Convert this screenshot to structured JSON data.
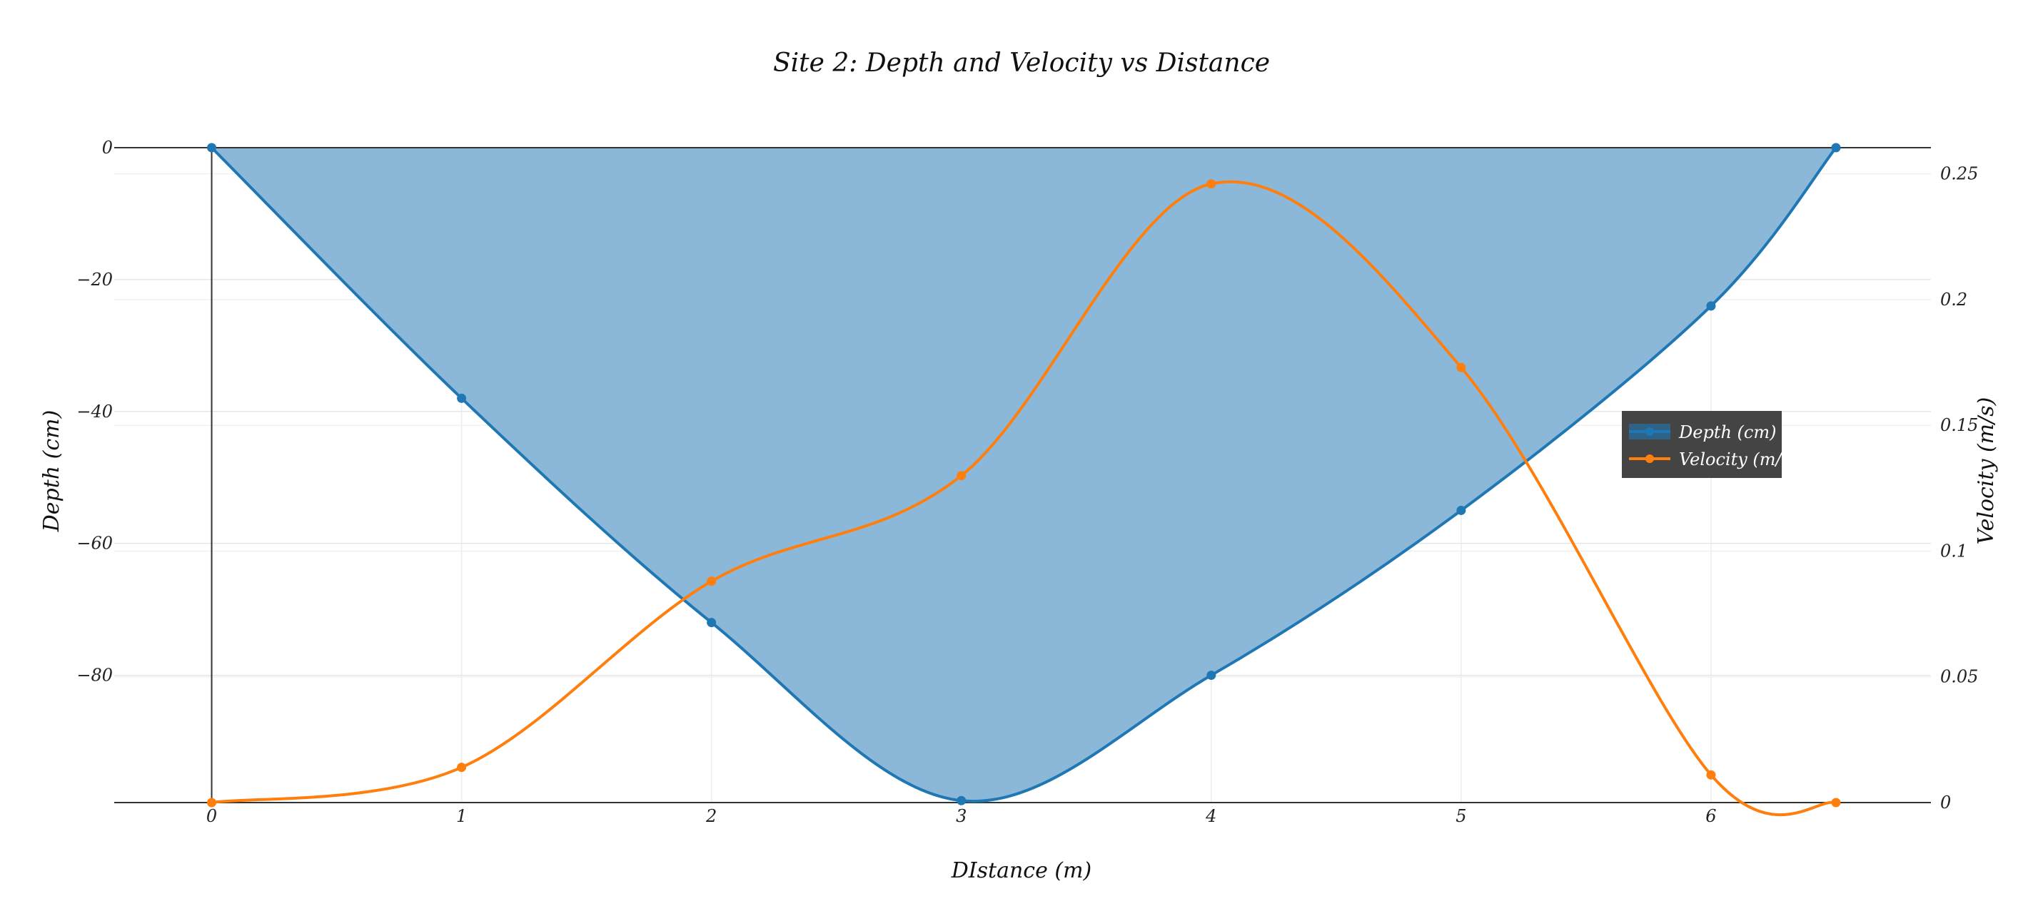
{
  "chart_data": {
    "type": "area",
    "title": "Site 2: Depth and Velocity vs Distance",
    "xlabel": "DIstance (m)",
    "ylabel": "Depth (cm)",
    "y2label": "Velocity (m/s)",
    "xlim": [
      -0.39,
      6.88
    ],
    "ylim": [
      -99.3,
      0
    ],
    "y2lim": [
      0,
      0.2604
    ],
    "x_ticks": [
      "0",
      "1",
      "2",
      "3",
      "4",
      "5",
      "6"
    ],
    "y_ticks": [
      "0",
      "−20",
      "−40",
      "−60",
      "−80"
    ],
    "y2_ticks": [
      "0",
      "0.05",
      "0.1",
      "0.15",
      "0.2",
      "0.25"
    ],
    "grid": true,
    "legend_position": "right",
    "series": [
      {
        "name": "Depth (cm)",
        "axis": "y",
        "fill": "tozeroy",
        "color": "#1f77b4",
        "fill_color": "#8bb8d9",
        "x": [
          0,
          1,
          2,
          3,
          4,
          5,
          6,
          6.5
        ],
        "y": [
          0,
          -38,
          -72,
          -99,
          -80,
          -55,
          -24,
          0
        ]
      },
      {
        "name": "Velocity (m/s)",
        "axis": "y2",
        "color": "#ff7f0e",
        "x": [
          0,
          1,
          2,
          3,
          4,
          5,
          6,
          6.5
        ],
        "y": [
          0,
          0.014,
          0.088,
          0.13,
          0.246,
          0.173,
          0.011,
          0
        ]
      }
    ]
  }
}
